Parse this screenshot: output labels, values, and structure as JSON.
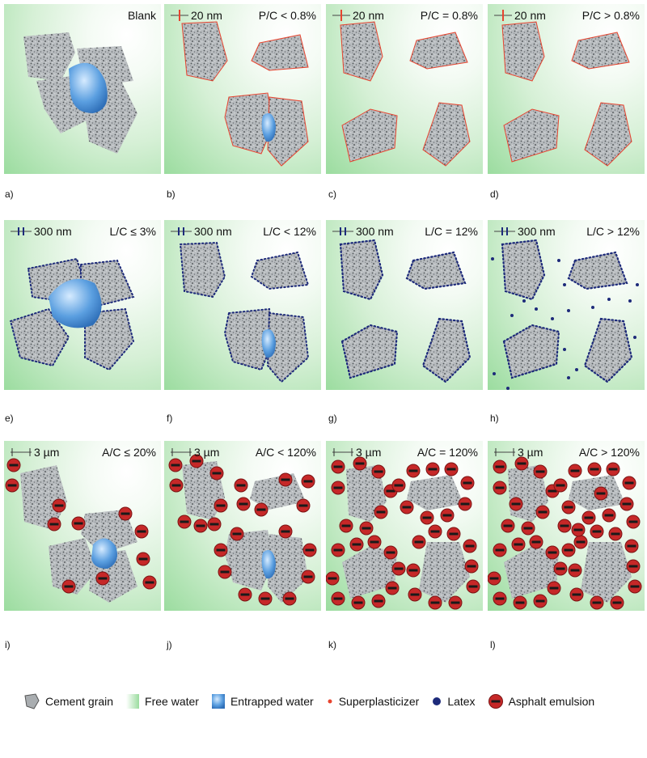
{
  "panels": [
    {
      "letter": "a)",
      "scale": "",
      "ratio": "Blank"
    },
    {
      "letter": "b)",
      "scale": "20 nm",
      "ratio": "P/C < 0.8%"
    },
    {
      "letter": "c)",
      "scale": "20 nm",
      "ratio": "P/C = 0.8%"
    },
    {
      "letter": "d)",
      "scale": "20 nm",
      "ratio": "P/C > 0.8%"
    },
    {
      "letter": "e)",
      "scale": "300 nm",
      "ratio": "L/C ≤ 3%"
    },
    {
      "letter": "f)",
      "scale": "300 nm",
      "ratio": "L/C < 12%"
    },
    {
      "letter": "g)",
      "scale": "300 nm",
      "ratio": "L/C = 12%"
    },
    {
      "letter": "h)",
      "scale": "300 nm",
      "ratio": "L/C > 12%"
    },
    {
      "letter": "i)",
      "scale": "3 µm",
      "ratio": "A/C ≤ 20%"
    },
    {
      "letter": "j)",
      "scale": "3 µm",
      "ratio": "A/C < 120%"
    },
    {
      "letter": "k)",
      "scale": "3 µm",
      "ratio": "A/C = 120%"
    },
    {
      "letter": "l)",
      "scale": "3 µm",
      "ratio": "A/C > 120%"
    }
  ],
  "legend": [
    {
      "label": "Cement grain",
      "icon": "cement-grain-icon"
    },
    {
      "label": "Free water",
      "icon": "free-water-icon"
    },
    {
      "label": "Entrapped water",
      "icon": "entrapped-water-icon"
    },
    {
      "label": "Superplasticizer",
      "icon": "superplasticizer-icon"
    },
    {
      "label": "Latex",
      "icon": "latex-icon"
    },
    {
      "label": "Asphalt emulsion",
      "icon": "asphalt-emulsion-icon"
    }
  ],
  "colors": {
    "free_water": "#9bdc9f",
    "entrapped_water": "#5b9fe0",
    "cement_grain": "#a9adb0",
    "superplasticizer": "#e8442f",
    "latex": "#1d2a7a",
    "asphalt_emulsion": "#c62828"
  }
}
